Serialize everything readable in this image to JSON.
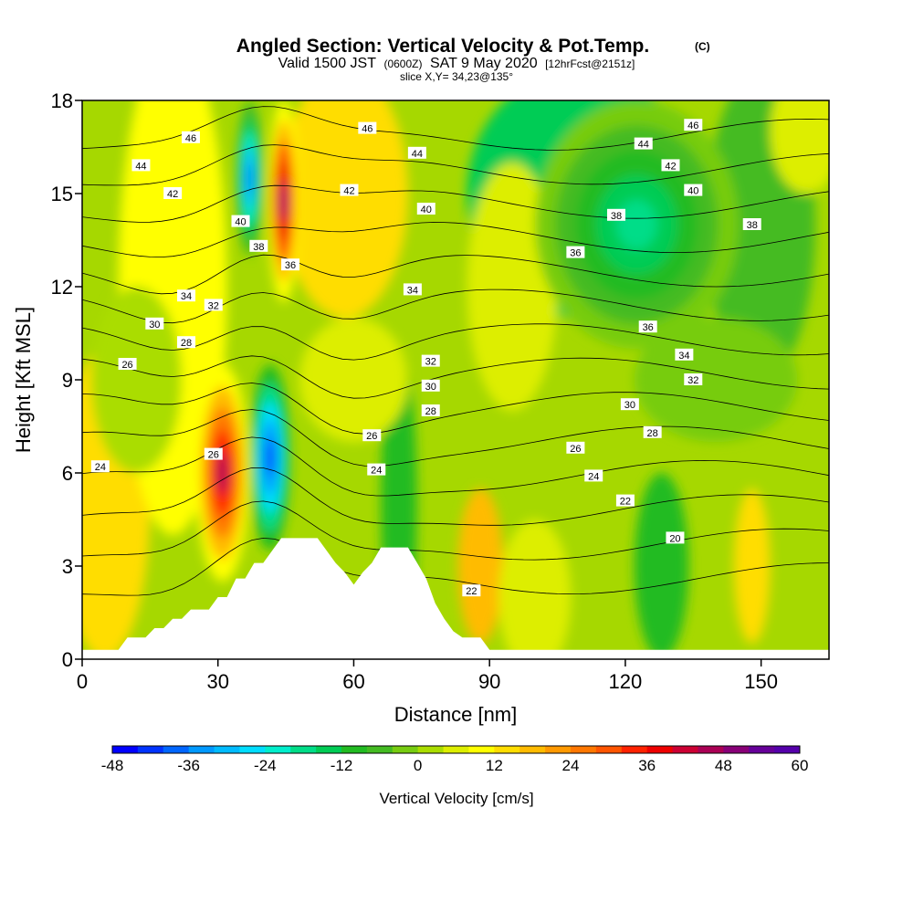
{
  "title": {
    "main": "Angled Section: Vertical Velocity & Pot.Temp.",
    "main_unit": "(C)",
    "line2_a": "Valid 1500 JST",
    "line2_b": "(0600Z)",
    "line2_c": "SAT 9 May 2020",
    "line2_d": "[12hrFcst@2151z]",
    "line3": "slice X,Y= 34,23@135°"
  },
  "chart_data": {
    "type": "heatmap",
    "xlabel": "Distance [nm]",
    "ylabel": "Height [Kft MSL]",
    "xlim": [
      0,
      165
    ],
    "ylim": [
      0,
      18
    ],
    "xticks": [
      0,
      30,
      60,
      90,
      120,
      150
    ],
    "yticks": [
      0,
      3,
      6,
      9,
      12,
      15,
      18
    ],
    "colorbar": {
      "label": "Vertical Velocity [cm/s]",
      "range": [
        -48,
        60
      ],
      "step": 4,
      "tick_values": [
        -48,
        -36,
        -24,
        -12,
        0,
        12,
        24,
        36,
        48,
        60
      ],
      "colors": [
        "#0000ff",
        "#0033ff",
        "#0066ff",
        "#0099ff",
        "#00bbff",
        "#00ddff",
        "#00eecc",
        "#00dd88",
        "#00cc55",
        "#22bb22",
        "#44bb22",
        "#77cc11",
        "#aadd00",
        "#ddee00",
        "#ffff00",
        "#ffdd00",
        "#ffbb00",
        "#ff9900",
        "#ff7700",
        "#ff5500",
        "#ff2200",
        "#ee0000",
        "#cc0033",
        "#aa0055",
        "#880077",
        "#660099",
        "#5500aa"
      ]
    },
    "vertical_velocity_features": [
      {
        "kind": "updraft",
        "x_range": [
          25,
          37
        ],
        "y_range": [
          2.5,
          9.5
        ],
        "peak_cms": 44
      },
      {
        "kind": "downdraft",
        "x_range": [
          37,
          46
        ],
        "y_range": [
          3.5,
          9.5
        ],
        "peak_cms": -44
      },
      {
        "kind": "downdraft",
        "x_range": [
          34,
          40
        ],
        "y_range": [
          13,
          18
        ],
        "peak_cms": -40
      },
      {
        "kind": "updraft",
        "x_range": [
          41,
          48
        ],
        "y_range": [
          11.5,
          18
        ],
        "peak_cms": 48
      },
      {
        "kind": "downdraft",
        "x_range": [
          100,
          145
        ],
        "y_range": [
          10,
          18
        ],
        "peak_cms": -18
      }
    ],
    "theta_contours": {
      "interval_c": 2,
      "labels": [
        {
          "value": 46,
          "x": 24,
          "y": 16.8
        },
        {
          "value": 44,
          "x": 13,
          "y": 15.9
        },
        {
          "value": 42,
          "x": 20,
          "y": 15.0
        },
        {
          "value": 40,
          "x": 35,
          "y": 14.1
        },
        {
          "value": 38,
          "x": 39,
          "y": 13.3
        },
        {
          "value": 36,
          "x": 46,
          "y": 12.7
        },
        {
          "value": 34,
          "x": 23,
          "y": 11.7
        },
        {
          "value": 32,
          "x": 29,
          "y": 11.4
        },
        {
          "value": 30,
          "x": 16,
          "y": 10.8
        },
        {
          "value": 28,
          "x": 23,
          "y": 10.2
        },
        {
          "value": 26,
          "x": 10,
          "y": 9.5
        },
        {
          "value": 26,
          "x": 29,
          "y": 6.6
        },
        {
          "value": 24,
          "x": 4,
          "y": 6.2
        },
        {
          "value": 46,
          "x": 63,
          "y": 17.1
        },
        {
          "value": 42,
          "x": 59,
          "y": 15.1
        },
        {
          "value": 44,
          "x": 74,
          "y": 16.3
        },
        {
          "value": 40,
          "x": 76,
          "y": 14.5
        },
        {
          "value": 34,
          "x": 73,
          "y": 11.9
        },
        {
          "value": 32,
          "x": 77,
          "y": 9.6
        },
        {
          "value": 30,
          "x": 77,
          "y": 8.8
        },
        {
          "value": 28,
          "x": 77,
          "y": 8.0
        },
        {
          "value": 26,
          "x": 64,
          "y": 7.2
        },
        {
          "value": 24,
          "x": 65,
          "y": 6.1
        },
        {
          "value": 22,
          "x": 86,
          "y": 2.2
        },
        {
          "value": 46,
          "x": 135,
          "y": 17.2
        },
        {
          "value": 44,
          "x": 124,
          "y": 16.6
        },
        {
          "value": 42,
          "x": 130,
          "y": 15.9
        },
        {
          "value": 40,
          "x": 135,
          "y": 15.1
        },
        {
          "value": 38,
          "x": 118,
          "y": 14.3
        },
        {
          "value": 38,
          "x": 148,
          "y": 14.0
        },
        {
          "value": 36,
          "x": 109,
          "y": 13.1
        },
        {
          "value": 36,
          "x": 125,
          "y": 10.7
        },
        {
          "value": 34,
          "x": 133,
          "y": 9.8
        },
        {
          "value": 32,
          "x": 135,
          "y": 9.0
        },
        {
          "value": 30,
          "x": 121,
          "y": 8.2
        },
        {
          "value": 28,
          "x": 126,
          "y": 7.3
        },
        {
          "value": 26,
          "x": 109,
          "y": 6.8
        },
        {
          "value": 24,
          "x": 113,
          "y": 5.9
        },
        {
          "value": 22,
          "x": 120,
          "y": 5.1
        },
        {
          "value": 20,
          "x": 131,
          "y": 3.9
        }
      ]
    },
    "terrain_kft": [
      [
        0,
        0.3
      ],
      [
        4,
        0.3
      ],
      [
        8,
        0.3
      ],
      [
        10,
        0.7
      ],
      [
        14,
        0.7
      ],
      [
        16,
        1.0
      ],
      [
        18,
        1.0
      ],
      [
        20,
        1.3
      ],
      [
        22,
        1.3
      ],
      [
        24,
        1.6
      ],
      [
        28,
        1.6
      ],
      [
        30,
        2.0
      ],
      [
        32,
        2.0
      ],
      [
        34,
        2.6
      ],
      [
        36,
        2.6
      ],
      [
        38,
        3.1
      ],
      [
        40,
        3.1
      ],
      [
        42,
        3.5
      ],
      [
        44,
        3.9
      ],
      [
        52,
        3.9
      ],
      [
        54,
        3.5
      ],
      [
        56,
        3.1
      ],
      [
        58,
        2.8
      ],
      [
        60,
        2.4
      ],
      [
        62,
        2.8
      ],
      [
        64,
        3.1
      ],
      [
        66,
        3.6
      ],
      [
        72,
        3.6
      ],
      [
        74,
        3.1
      ],
      [
        76,
        2.6
      ],
      [
        78,
        1.8
      ],
      [
        80,
        1.3
      ],
      [
        82,
        0.9
      ],
      [
        84,
        0.7
      ],
      [
        88,
        0.7
      ],
      [
        90,
        0.3
      ],
      [
        165,
        0.3
      ]
    ]
  }
}
